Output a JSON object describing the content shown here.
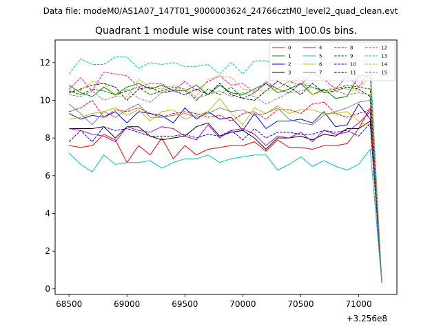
{
  "suptitle": "Data file: modeM0/AS1A07_147T01_9000003624_24766cztM0_level2_quad_clean.evt",
  "chart_data": {
    "type": "line",
    "title": "Quadrant 1 module wise count rates with 100.0s bins.",
    "xlabel": "",
    "ylabel": "",
    "offset_label": "+3.256e8",
    "xlim": [
      68380,
      71330
    ],
    "ylim": [
      -0.3,
      13.2
    ],
    "xticks": [
      68500,
      69000,
      69500,
      70000,
      70500,
      71000
    ],
    "xtick_labels": [
      "68500",
      "69000",
      "69500",
      "70000",
      "70500",
      "71000"
    ],
    "yticks": [
      0,
      2,
      4,
      6,
      8,
      10,
      12
    ],
    "ytick_labels": [
      "0",
      "2",
      "4",
      "6",
      "8",
      "10",
      "12"
    ],
    "legend_position": "upper right",
    "x": [
      68500,
      68600,
      68700,
      68800,
      68900,
      69000,
      69100,
      69200,
      69300,
      69400,
      69500,
      69600,
      69700,
      69800,
      69900,
      70000,
      70100,
      70200,
      70300,
      70400,
      70500,
      70600,
      70700,
      70800,
      70900,
      71000,
      71100,
      71200
    ],
    "series": [
      {
        "name": "0",
        "color": "#ff0000",
        "dash": "solid",
        "values": [
          7.6,
          7.5,
          7.6,
          8.2,
          7.9,
          6.7,
          7.6,
          7.1,
          8.0,
          6.9,
          7.6,
          7.1,
          7.4,
          7.5,
          7.6,
          7.6,
          7.8,
          7.3,
          7.9,
          7.5,
          7.5,
          7.4,
          7.6,
          7.6,
          7.7,
          8.5,
          9.6,
          0.4
        ]
      },
      {
        "name": "1",
        "color": "#008000",
        "dash": "solid",
        "values": [
          10.8,
          10.4,
          10.2,
          10.7,
          10.3,
          10.7,
          10.9,
          10.6,
          10.8,
          10.5,
          10.5,
          10.8,
          10.3,
          10.8,
          10.4,
          10.3,
          10.6,
          10.9,
          10.4,
          10.6,
          10.9,
          10.3,
          10.6,
          10.1,
          10.2,
          11.3,
          11.3,
          0.3
        ]
      },
      {
        "name": "2",
        "color": "#0000ff",
        "dash": "solid",
        "values": [
          9.3,
          9.0,
          9.2,
          9.1,
          9.4,
          8.8,
          9.4,
          9.3,
          9.2,
          8.8,
          9.6,
          9.0,
          9.4,
          9.0,
          9.1,
          8.4,
          9.3,
          8.5,
          8.9,
          8.9,
          9.0,
          8.8,
          9.4,
          8.6,
          8.7,
          9.8,
          9.0,
          0.4
        ]
      },
      {
        "name": "3",
        "color": "#000000",
        "dash": "solid",
        "values": [
          8.5,
          8.5,
          8.5,
          8.6,
          8.0,
          8.6,
          8.6,
          8.1,
          7.9,
          8.0,
          8.1,
          8.6,
          8.8,
          8.1,
          8.3,
          8.4,
          8.0,
          7.4,
          8.0,
          8.0,
          8.1,
          7.9,
          8.2,
          8.1,
          8.5,
          8.5,
          8.9,
          0.4
        ]
      },
      {
        "name": "4",
        "color": "#c000c0",
        "dash": "solid",
        "values": [
          8.5,
          8.4,
          8.2,
          8.1,
          7.8,
          8.6,
          8.4,
          8.3,
          8.6,
          8.5,
          8.1,
          7.9,
          8.7,
          8.0,
          8.4,
          8.5,
          8.2,
          7.6,
          8.1,
          8.0,
          8.3,
          7.8,
          8.4,
          8.2,
          8.3,
          8.8,
          9.4,
          0.4
        ]
      },
      {
        "name": "5",
        "color": "#00bfbf",
        "dash": "solid",
        "values": [
          7.2,
          6.6,
          6.2,
          7.1,
          6.6,
          6.7,
          6.7,
          6.8,
          6.4,
          6.7,
          6.9,
          6.9,
          7.1,
          6.7,
          6.9,
          7.0,
          7.1,
          7.1,
          6.3,
          6.6,
          7.0,
          6.5,
          6.8,
          6.5,
          6.3,
          6.6,
          7.4,
          0.3
        ]
      },
      {
        "name": "6",
        "color": "#bfbf00",
        "dash": "solid",
        "values": [
          9.0,
          9.1,
          9.3,
          9.4,
          9.6,
          9.2,
          9.5,
          8.9,
          9.4,
          9.5,
          9.0,
          9.2,
          9.4,
          10.1,
          9.3,
          8.7,
          9.6,
          9.3,
          9.7,
          9.3,
          9.5,
          9.5,
          9.3,
          9.3,
          9.4,
          8.9,
          8.6,
          0.4
        ]
      },
      {
        "name": "7",
        "color": "#808080",
        "dash": "solid",
        "values": [
          9.8,
          9.3,
          8.7,
          9.4,
          9.1,
          9.5,
          9.8,
          9.1,
          9.1,
          9.2,
          9.3,
          9.1,
          9.3,
          9.6,
          9.4,
          9.5,
          9.2,
          9.3,
          9.6,
          9.0,
          8.8,
          8.7,
          9.2,
          9.4,
          9.6,
          9.9,
          10.0,
          0.4
        ]
      },
      {
        "name": "8",
        "color": "#ff0000",
        "dash": "dashed",
        "values": [
          9.4,
          9.6,
          10.0,
          9.1,
          9.5,
          9.4,
          9.6,
          9.3,
          9.1,
          9.3,
          9.4,
          9.3,
          9.1,
          9.2,
          8.9,
          9.3,
          9.4,
          9.0,
          9.5,
          9.5,
          9.3,
          9.8,
          9.9,
          9.3,
          9.1,
          9.3,
          9.5,
          0.4
        ]
      },
      {
        "name": "9",
        "color": "#006400",
        "dash": "dashed",
        "values": [
          10.5,
          10.3,
          10.6,
          10.5,
          10.3,
          10.5,
          10.7,
          10.3,
          10.5,
          10.7,
          10.6,
          10.0,
          10.6,
          10.3,
          10.7,
          10.1,
          10.4,
          10.9,
          10.6,
          10.4,
          10.9,
          10.7,
          10.5,
          10.6,
          10.8,
          10.7,
          10.6,
          0.3
        ]
      },
      {
        "name": "10",
        "color": "#0000ff",
        "dash": "dashed",
        "values": [
          7.8,
          8.4,
          7.8,
          8.6,
          8.4,
          8.5,
          8.3,
          8.1,
          8.1,
          8.1,
          8.2,
          8.0,
          8.2,
          8.1,
          8.4,
          7.9,
          8.5,
          8.0,
          8.3,
          8.3,
          8.2,
          8.2,
          8.4,
          8.3,
          8.4,
          8.1,
          8.8,
          0.4
        ]
      },
      {
        "name": "11",
        "color": "#000000",
        "dash": "dashed",
        "values": [
          10.4,
          10.6,
          10.8,
          10.9,
          10.7,
          10.0,
          10.6,
          10.7,
          10.4,
          10.5,
          10.3,
          10.6,
          10.3,
          10.9,
          10.3,
          10.1,
          10.0,
          10.5,
          11.0,
          10.7,
          10.3,
          10.9,
          10.4,
          10.5,
          10.7,
          10.6,
          10.2,
          0.4
        ]
      },
      {
        "name": "12",
        "color": "#ff00ff",
        "dash": "dashed",
        "values": [
          10.6,
          11.2,
          10.5,
          11.5,
          11.4,
          11.3,
          10.7,
          10.9,
          10.9,
          10.5,
          11.0,
          10.5,
          11.0,
          11.3,
          10.8,
          10.9,
          10.4,
          11.0,
          10.6,
          11.0,
          10.8,
          11.5,
          11.1,
          10.6,
          11.3,
          10.7,
          11.6,
          0.3
        ]
      },
      {
        "name": "13",
        "color": "#00bfbf",
        "dash": "dashed",
        "values": [
          11.4,
          12.2,
          11.9,
          11.9,
          12.3,
          12.3,
          11.7,
          12.0,
          11.9,
          12.0,
          11.8,
          11.8,
          11.9,
          11.4,
          12.0,
          11.4,
          12.1,
          12.1,
          11.8,
          12.0,
          11.9,
          12.2,
          11.6,
          12.3,
          12.2,
          12.1,
          12.1,
          0.3
        ]
      },
      {
        "name": "14",
        "color": "#bfbf00",
        "dash": "dashed",
        "values": [
          10.6,
          10.5,
          11.0,
          10.9,
          10.2,
          10.2,
          11.1,
          10.7,
          10.6,
          10.8,
          10.6,
          10.2,
          11.1,
          11.3,
          11.2,
          10.6,
          10.5,
          10.5,
          10.6,
          11.0,
          11.1,
          10.3,
          10.5,
          10.7,
          10.6,
          10.5,
          11.4,
          0.4
        ]
      },
      {
        "name": "15",
        "color": "#808080",
        "dash": "dashed",
        "values": [
          10.3,
          10.2,
          10.5,
          10.0,
          10.2,
          10.6,
          10.1,
          9.9,
          10.4,
          10.6,
          10.5,
          10.1,
          10.3,
          10.5,
          10.2,
          10.4,
          10.2,
          9.8,
          10.1,
          10.4,
          10.5,
          10.7,
          10.4,
          10.5,
          10.3,
          10.4,
          10.3,
          0.4
        ]
      }
    ]
  }
}
